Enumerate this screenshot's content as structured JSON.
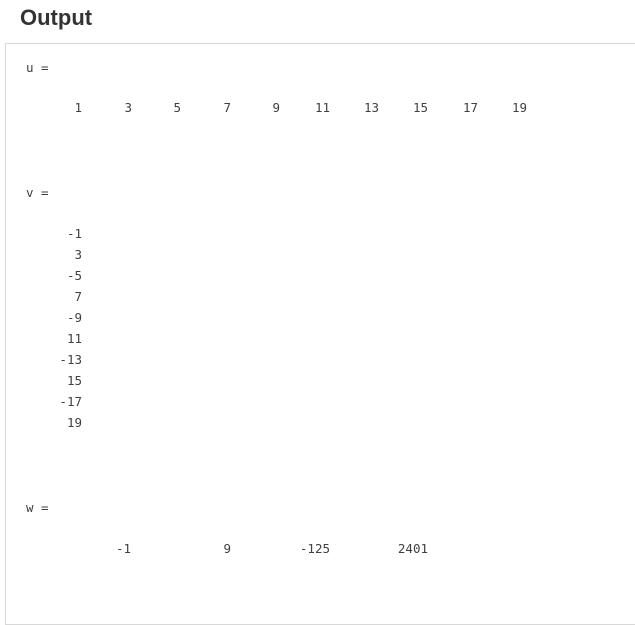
{
  "heading": "Output",
  "variables": {
    "u": {
      "label": "u =",
      "values": [
        "1",
        "3",
        "5",
        "7",
        "9",
        "11",
        "13",
        "15",
        "17",
        "19"
      ]
    },
    "v": {
      "label": "v =",
      "values": [
        "-1",
        "3",
        "-5",
        "7",
        "-9",
        "11",
        "-13",
        "15",
        "-17",
        "19"
      ]
    },
    "w": {
      "label": "w =",
      "values": [
        "-1",
        "9",
        "-125",
        "2401"
      ]
    }
  }
}
